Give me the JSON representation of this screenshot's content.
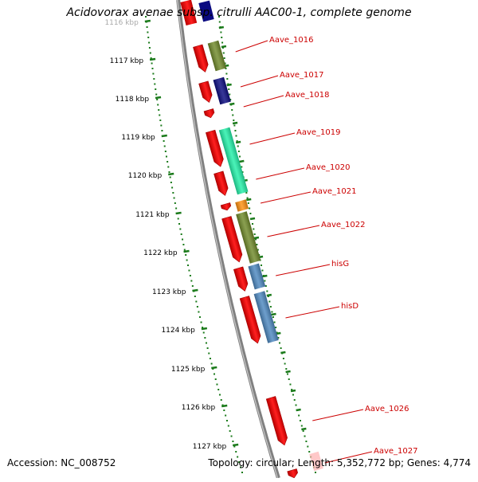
{
  "title": "Acidovorax avenae subsp. citrulli AAC00-1, complete genome",
  "footer": {
    "accession": "Accession: NC_008752",
    "stats": "Topology: circular; Length: 5,352,772 bp; Genes: 4,774"
  },
  "ruler": {
    "labels": [
      "1116 kbp",
      "1117 kbp",
      "1118 kbp",
      "1119 kbp",
      "1120 kbp",
      "1121 kbp",
      "1122 kbp",
      "1123 kbp",
      "1124 kbp",
      "1125 kbp",
      "1126 kbp",
      "1127 kbp"
    ]
  },
  "genes": [
    {
      "name": "Aave_1016",
      "arrow_color": "#ff1a1a",
      "block_color": "#708a2a"
    },
    {
      "name": "Aave_1017",
      "arrow_color": "#ff1a1a",
      "block_color": "#0a0a80"
    },
    {
      "name": "Aave_1018",
      "arrow_color": "#ff1a1a",
      "block_color": null
    },
    {
      "name": "Aave_1019",
      "arrow_color": "#ff1a1a",
      "block_color": "#22f0a8"
    },
    {
      "name": "Aave_1020",
      "arrow_color": "#ff1a1a",
      "block_color": null
    },
    {
      "name": "Aave_1021",
      "arrow_color": "#ff1a1a",
      "block_color": "#ff9010"
    },
    {
      "name": "Aave_1022",
      "arrow_color": "#ff1a1a",
      "block_color": "#708a2a"
    },
    {
      "name": "hisG",
      "arrow_color": "#ff1a1a",
      "block_color": "#4d88c0"
    },
    {
      "name": "hisD",
      "arrow_color": "#ff1a1a",
      "block_color": "#4d88c0"
    },
    {
      "name": "Aave_1026",
      "arrow_color": "#ff1a1a",
      "block_color": null
    },
    {
      "name": "Aave_1027",
      "arrow_color": "#ff1a1a",
      "block_color": null
    }
  ],
  "colors": {
    "label": "#cc0000",
    "tick_green": "#1a7a1a",
    "backbone": "#808080"
  }
}
